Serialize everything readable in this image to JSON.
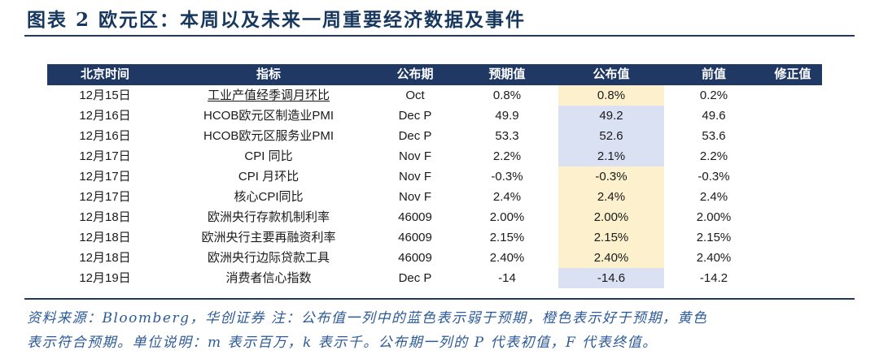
{
  "figure": {
    "label_and_title": "图表 2  欧元区：本周以及未来一周重要经济数据及事件"
  },
  "table": {
    "columns": [
      "北京时间",
      "指标",
      "公布期",
      "预期值",
      "公布值",
      "前值",
      "修正值"
    ],
    "rows": [
      {
        "time": "12月15日",
        "indicator": "工业产值经季调月环比",
        "indicator_underlined": true,
        "period": "Oct",
        "expected": "0.8%",
        "announced": "0.8%",
        "announced_highlight": "yellow",
        "previous": "0.2%",
        "revised": ""
      },
      {
        "time": "12月16日",
        "indicator": "HCOB欧元区制造业PMI",
        "indicator_underlined": false,
        "period": "Dec P",
        "expected": "49.9",
        "announced": "49.2",
        "announced_highlight": "blue",
        "previous": "49.6",
        "revised": ""
      },
      {
        "time": "12月16日",
        "indicator": "HCOB欧元区服务业PMI",
        "indicator_underlined": false,
        "period": "Dec P",
        "expected": "53.3",
        "announced": "52.6",
        "announced_highlight": "blue",
        "previous": "53.6",
        "revised": ""
      },
      {
        "time": "12月17日",
        "indicator": "CPI 同比",
        "indicator_underlined": false,
        "period": "Nov F",
        "expected": "2.2%",
        "announced": "2.1%",
        "announced_highlight": "blue",
        "previous": "2.2%",
        "revised": ""
      },
      {
        "time": "12月17日",
        "indicator": "CPI 月环比",
        "indicator_underlined": false,
        "period": "Nov F",
        "expected": "-0.3%",
        "announced": "-0.3%",
        "announced_highlight": "yellow",
        "previous": "-0.3%",
        "revised": ""
      },
      {
        "time": "12月17日",
        "indicator": "核心CPI同比",
        "indicator_underlined": false,
        "period": "Nov F",
        "expected": "2.4%",
        "announced": "2.4%",
        "announced_highlight": "yellow",
        "previous": "2.4%",
        "revised": ""
      },
      {
        "time": "12月18日",
        "indicator": "欧洲央行存款机制利率",
        "indicator_underlined": false,
        "period": "46009",
        "expected": "2.00%",
        "announced": "2.00%",
        "announced_highlight": "yellow",
        "previous": "2.00%",
        "revised": ""
      },
      {
        "time": "12月18日",
        "indicator": "欧洲央行主要再融资利率",
        "indicator_underlined": false,
        "period": "46009",
        "expected": "2.15%",
        "announced": "2.15%",
        "announced_highlight": "yellow",
        "previous": "2.15%",
        "revised": ""
      },
      {
        "time": "12月18日",
        "indicator": "欧洲央行边际贷款工具",
        "indicator_underlined": false,
        "period": "46009",
        "expected": "2.40%",
        "announced": "2.40%",
        "announced_highlight": "yellow",
        "previous": "2.40%",
        "revised": ""
      },
      {
        "time": "12月19日",
        "indicator": "消费者信心指数",
        "indicator_underlined": false,
        "period": "Dec P",
        "expected": "-14",
        "announced": "-14.6",
        "announced_highlight": "blue",
        "previous": "-14.2",
        "revised": ""
      }
    ]
  },
  "highlight_colors": {
    "yellow": "#FCF0CD",
    "blue": "#DAE1F3"
  },
  "theme": {
    "header_bg": "#1F3864",
    "title_color": "#17375E",
    "footnote_color": "#2D5B97",
    "rule_color": "#1F3864"
  },
  "footnote": {
    "line1": "资料来源：Bloomberg，华创证券  注：公布值一列中的蓝色表示弱于预期，橙色表示好于预期，黄色",
    "line2": "表示符合预期。单位说明：m 表示百万，k 表示千。公布期一列的 P 代表初值，F 代表终值。"
  },
  "chart_data": {
    "type": "table",
    "title": "图表 2  欧元区：本周以及未来一周重要经济数据及事件",
    "columns": [
      "北京时间",
      "指标",
      "公布期",
      "预期值",
      "公布值",
      "前值",
      "修正值"
    ],
    "rows": [
      [
        "12月15日",
        "工业产值经季调月环比",
        "Oct",
        "0.8%",
        "0.8%",
        "0.2%",
        ""
      ],
      [
        "12月16日",
        "HCOB欧元区制造业PMI",
        "Dec P",
        "49.9",
        "49.2",
        "49.6",
        ""
      ],
      [
        "12月16日",
        "HCOB欧元区服务业PMI",
        "Dec P",
        "53.3",
        "52.6",
        "53.6",
        ""
      ],
      [
        "12月17日",
        "CPI 同比",
        "Nov F",
        "2.2%",
        "2.1%",
        "2.2%",
        ""
      ],
      [
        "12月17日",
        "CPI 月环比",
        "Nov F",
        "-0.3%",
        "-0.3%",
        "-0.3%",
        ""
      ],
      [
        "12月17日",
        "核心CPI同比",
        "Nov F",
        "2.4%",
        "2.4%",
        "2.4%",
        ""
      ],
      [
        "12月18日",
        "欧洲央行存款机制利率",
        "46009",
        "2.00%",
        "2.00%",
        "2.00%",
        ""
      ],
      [
        "12月18日",
        "欧洲央行主要再融资利率",
        "46009",
        "2.15%",
        "2.15%",
        "2.15%",
        ""
      ],
      [
        "12月18日",
        "欧洲央行边际贷款工具",
        "46009",
        "2.40%",
        "2.40%",
        "2.40%",
        ""
      ],
      [
        "12月19日",
        "消费者信心指数",
        "Dec P",
        "-14",
        "-14.6",
        "-14.2",
        ""
      ]
    ]
  }
}
